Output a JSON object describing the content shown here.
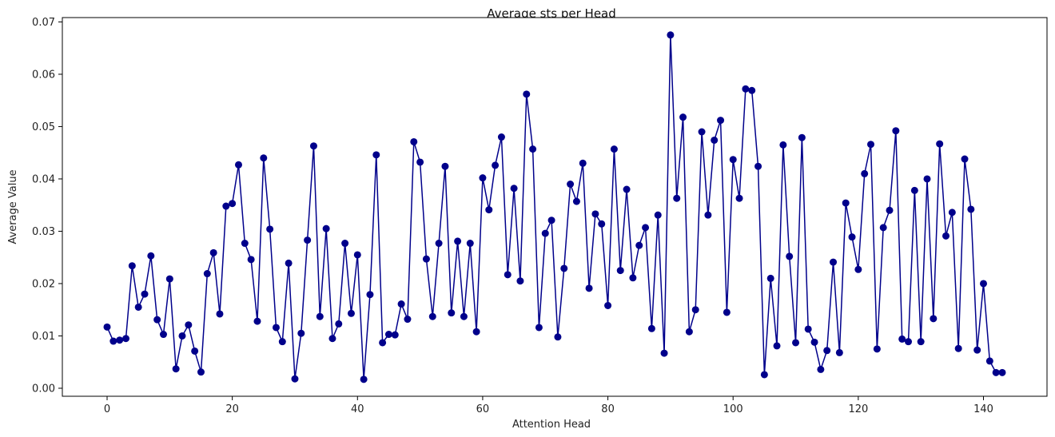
{
  "chart_data": {
    "type": "line",
    "title": "Average sts per Head",
    "xlabel": "Attention Head",
    "ylabel": "Average Value",
    "xlim": [
      -7.15,
      150.15
    ],
    "ylim": [
      -0.00153,
      0.07083
    ],
    "xticks": [
      0,
      20,
      40,
      60,
      80,
      100,
      120,
      140
    ],
    "yticks": [
      0.0,
      0.01,
      0.02,
      0.03,
      0.04,
      0.05,
      0.06,
      0.07
    ],
    "ytick_labels": [
      "0.00",
      "0.01",
      "0.02",
      "0.03",
      "0.04",
      "0.05",
      "0.06",
      "0.07"
    ],
    "grid": false,
    "series": [
      {
        "name": "Average sts",
        "color": "#00008b",
        "marker": "circle",
        "x": [
          0,
          1,
          2,
          3,
          4,
          5,
          6,
          7,
          8,
          9,
          10,
          11,
          12,
          13,
          14,
          15,
          16,
          17,
          18,
          19,
          20,
          21,
          22,
          23,
          24,
          25,
          26,
          27,
          28,
          29,
          30,
          31,
          32,
          33,
          34,
          35,
          36,
          37,
          38,
          39,
          40,
          41,
          42,
          43,
          44,
          45,
          46,
          47,
          48,
          49,
          50,
          51,
          52,
          53,
          54,
          55,
          56,
          57,
          58,
          59,
          60,
          61,
          62,
          63,
          64,
          65,
          66,
          67,
          68,
          69,
          70,
          71,
          72,
          73,
          74,
          75,
          76,
          77,
          78,
          79,
          80,
          81,
          82,
          83,
          84,
          85,
          86,
          87,
          88,
          89,
          90,
          91,
          92,
          93,
          94,
          95,
          96,
          97,
          98,
          99,
          100,
          101,
          102,
          103,
          104,
          105,
          106,
          107,
          108,
          109,
          110,
          111,
          112,
          113,
          114,
          115,
          116,
          117,
          118,
          119,
          120,
          121,
          122,
          123,
          124,
          125,
          126,
          127,
          128,
          129,
          130,
          131,
          132,
          133,
          134,
          135,
          136,
          137,
          138,
          139,
          140,
          141,
          142,
          143
        ],
        "values": [
          0.0117,
          0.009,
          0.0092,
          0.0095,
          0.0234,
          0.0155,
          0.018,
          0.0253,
          0.0131,
          0.0103,
          0.0209,
          0.0037,
          0.01,
          0.0121,
          0.0071,
          0.0031,
          0.0219,
          0.0259,
          0.0142,
          0.0348,
          0.0353,
          0.0427,
          0.0277,
          0.0246,
          0.0128,
          0.044,
          0.0304,
          0.0116,
          0.0089,
          0.0239,
          0.0018,
          0.0105,
          0.0283,
          0.0463,
          0.0137,
          0.0305,
          0.0095,
          0.0123,
          0.0277,
          0.0143,
          0.0255,
          0.0017,
          0.0179,
          0.0446,
          0.0087,
          0.0103,
          0.0102,
          0.0161,
          0.0132,
          0.0471,
          0.0432,
          0.0247,
          0.0137,
          0.0277,
          0.0424,
          0.0144,
          0.0281,
          0.0137,
          0.0277,
          0.0108,
          0.0402,
          0.0341,
          0.0426,
          0.048,
          0.0217,
          0.0382,
          0.0205,
          0.0562,
          0.0457,
          0.0116,
          0.0296,
          0.0321,
          0.0098,
          0.0229,
          0.039,
          0.0357,
          0.043,
          0.0191,
          0.0333,
          0.0314,
          0.0158,
          0.0457,
          0.0225,
          0.038,
          0.0211,
          0.0273,
          0.0307,
          0.0114,
          0.0331,
          0.0067,
          0.0675,
          0.0363,
          0.0518,
          0.0108,
          0.015,
          0.049,
          0.0331,
          0.0474,
          0.0512,
          0.0145,
          0.0437,
          0.0363,
          0.0572,
          0.0569,
          0.0424,
          0.0026,
          0.021,
          0.0081,
          0.0465,
          0.0252,
          0.0087,
          0.0479,
          0.0113,
          0.0088,
          0.0036,
          0.0072,
          0.0241,
          0.0068,
          0.0354,
          0.0289,
          0.0227,
          0.041,
          0.0466,
          0.0075,
          0.0307,
          0.034,
          0.0492,
          0.0094,
          0.0089,
          0.0378,
          0.0089,
          0.04,
          0.0133,
          0.0467,
          0.0291,
          0.0336,
          0.0076,
          0.0438,
          0.0342,
          0.0073,
          0.02,
          0.0052,
          0.003,
          0.003
        ]
      }
    ]
  }
}
